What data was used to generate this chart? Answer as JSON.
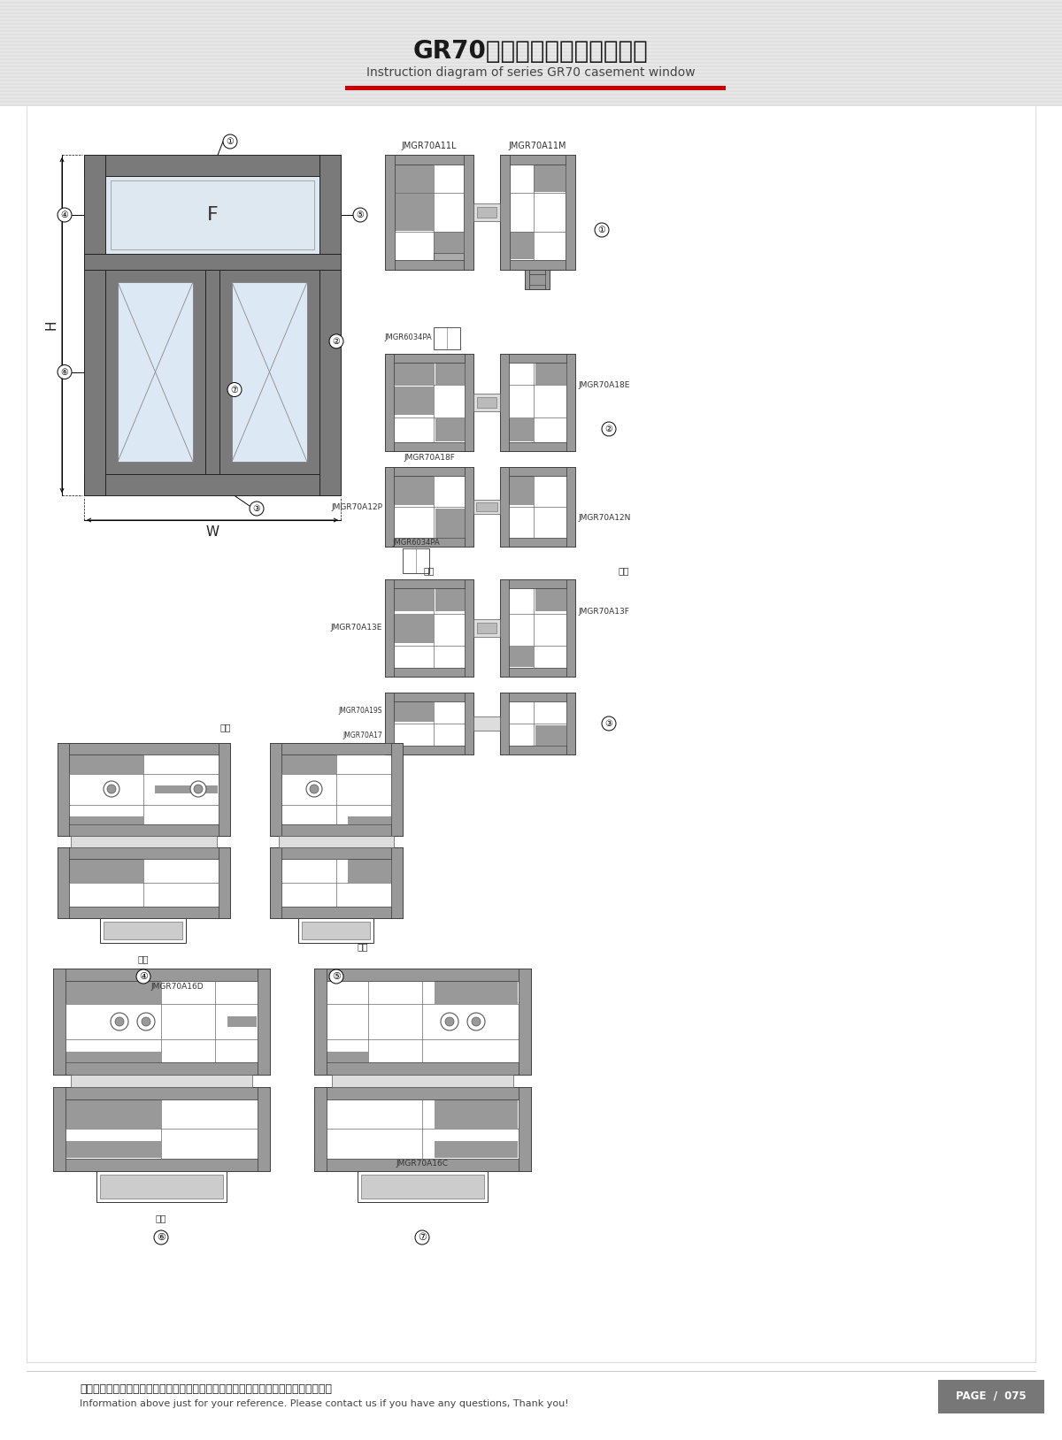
{
  "title_cn": "GR70系列隔热平开门窗结构图",
  "title_en": "Instruction diagram of series GR70 casement window",
  "footer_cn": "图中所示型材截面、装配、编号、尺寸及重量仅供参考。如有疑问，请向本公司查询。",
  "footer_en": "Information above just for your reference. Please contact us if you have any questions, Thank you!",
  "page_text": "PAGE  /  075",
  "bg_color": "#f0f0f0",
  "white": "#ffffff",
  "al_gray": "#999999",
  "al_dark": "#666666",
  "al_light": "#cccccc",
  "al_black": "#333333",
  "red_color": "#cc0000",
  "page_bg": "#777777"
}
